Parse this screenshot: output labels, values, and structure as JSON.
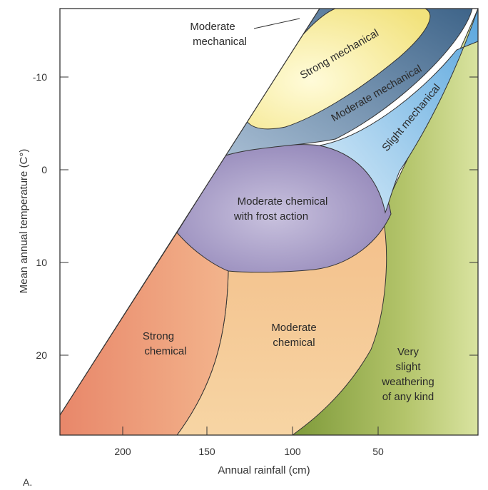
{
  "diagram": {
    "panel_label": "A.",
    "x_axis": {
      "title": "Annual rainfall (cm)",
      "ticks": [
        "200",
        "150",
        "100",
        "50"
      ]
    },
    "y_axis": {
      "title": "Mean annual temperature (C°)",
      "ticks": [
        "-10",
        "0",
        "10",
        "20"
      ]
    },
    "zones": {
      "strong_mechanical": {
        "label": "Strong mechanical",
        "color": "#f7eb9a"
      },
      "moderate_mechanical": {
        "label": "Moderate mechanical",
        "color": "#5b7ea3"
      },
      "slight_mechanical": {
        "label": "Slight mechanical",
        "color": "#8ec4ea"
      },
      "moderate_chemical_frost": {
        "line1": "Moderate chemical",
        "line2": "with frost action",
        "color": "#9b8fc0"
      },
      "strong_chemical": {
        "line1": "Strong",
        "line2": "chemical",
        "color": "#e9967a"
      },
      "moderate_chemical": {
        "line1": "Moderate",
        "line2": "chemical",
        "color": "#f5c98d"
      },
      "very_slight": {
        "line1": "Very",
        "line2": "slight",
        "line3": "weathering",
        "line4": "of any kind",
        "color": "#a9bd5e"
      }
    },
    "callout": {
      "line1": "Moderate",
      "line2": "mechanical"
    }
  }
}
